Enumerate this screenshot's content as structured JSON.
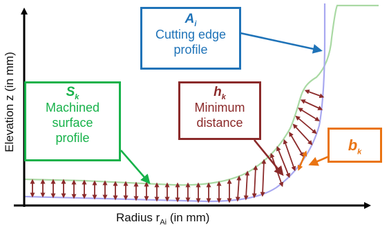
{
  "colors": {
    "cutting_edge": "#1f73b8",
    "surface": "#17b24a",
    "distance": "#8b2a2a",
    "bk": "#ea7412",
    "axis": "#000000",
    "cutting_edge_curve": "#a8a8f0",
    "surface_curve": "#a9d9a3"
  },
  "axes": {
    "x_label_main": "Radius r",
    "x_label_sub": "Ai",
    "x_label_unit": " (in mm)",
    "y_label": "Elevation z (in mm)"
  },
  "boxes": {
    "cutting_edge": {
      "symbol": "A",
      "subscript": "i",
      "line1": "Cutting edge",
      "line2": "profile"
    },
    "surface": {
      "symbol": "S",
      "subscript": "k",
      "line1": "Machined",
      "line2": "surface",
      "line3": "profile"
    },
    "distance": {
      "symbol": "h",
      "subscript": "k",
      "line1": "Minimum",
      "line2": "distance"
    },
    "bk": {
      "symbol": "b",
      "subscript": "k"
    }
  }
}
